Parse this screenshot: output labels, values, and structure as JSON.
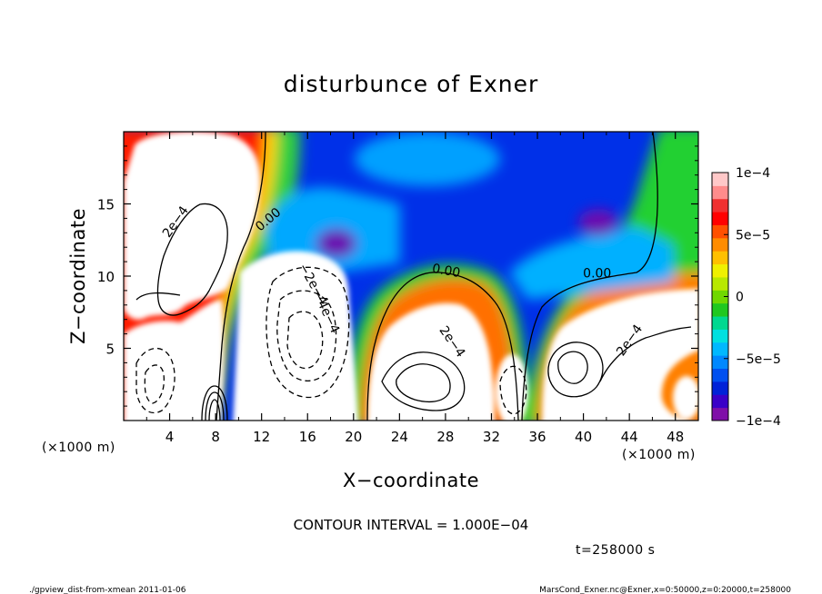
{
  "chart_data": {
    "type": "heatmap",
    "title": "disturbunce of Exner",
    "xlabel": "X−coordinate",
    "ylabel": "Z−coordinate",
    "x_unit_left": "(×1000 m)",
    "x_unit_right": "(×1000 m)",
    "xlim": [
      0,
      50
    ],
    "ylim": [
      0,
      20
    ],
    "x_ticks": [
      4,
      8,
      12,
      16,
      20,
      24,
      28,
      32,
      36,
      40,
      44,
      48
    ],
    "x_tick_labels": [
      "4",
      "8",
      "12",
      "16",
      "20",
      "24",
      "28",
      "32",
      "36",
      "40",
      "44",
      "48"
    ],
    "y_ticks": [
      5,
      10,
      15
    ],
    "y_tick_labels": [
      "5",
      "10",
      "15"
    ],
    "colorbar": {
      "vmin": -0.0001,
      "vmax": 0.0001,
      "tick_values": [
        0.0001,
        5e-05,
        0,
        -5e-05,
        -0.0001
      ],
      "tick_labels": [
        "1e−4",
        "5e−5",
        "0",
        "−5e−5",
        "−1e−4"
      ],
      "colors": [
        "#7f0fa8",
        "#3a00c8",
        "#0022d8",
        "#0050f0",
        "#0088ff",
        "#00b8ff",
        "#00e0e0",
        "#00d890",
        "#20c820",
        "#70d800",
        "#b8e800",
        "#f0f000",
        "#ffc000",
        "#ff8c00",
        "#ff5000",
        "#ff0000",
        "#f03030",
        "#ff8c8c",
        "#ffc8c8"
      ]
    },
    "contour_labels": [
      {
        "text": "2e−4",
        "x": 4.8,
        "y": 13.6,
        "rot": -55
      },
      {
        "text": "0.00",
        "x": 12.8,
        "y": 13.7,
        "rot": -40
      },
      {
        "text": "−2e−4",
        "x": 16.2,
        "y": 9.3,
        "rot": 60
      },
      {
        "text": "−4e−4",
        "x": 17.3,
        "y": 7.4,
        "rot": 65
      },
      {
        "text": "0.00",
        "x": 28.0,
        "y": 10.1,
        "rot": 10
      },
      {
        "text": "2e−4",
        "x": 28.3,
        "y": 5.3,
        "rot": 55
      },
      {
        "text": "0.00",
        "x": 41.2,
        "y": 9.9,
        "rot": 0
      },
      {
        "text": "2e−4",
        "x": 44.3,
        "y": 5.4,
        "rot": -55
      }
    ],
    "contour_interval_text": "CONTOUR INTERVAL = 1.000E−04",
    "time_text": "t=258000 s",
    "footer_left": "./gpview_dist-from-xmean  2011-01-06",
    "footer_right": "MarsCond_Exner.nc@Exner,x=0:50000,z=0:20000,t=258000"
  }
}
